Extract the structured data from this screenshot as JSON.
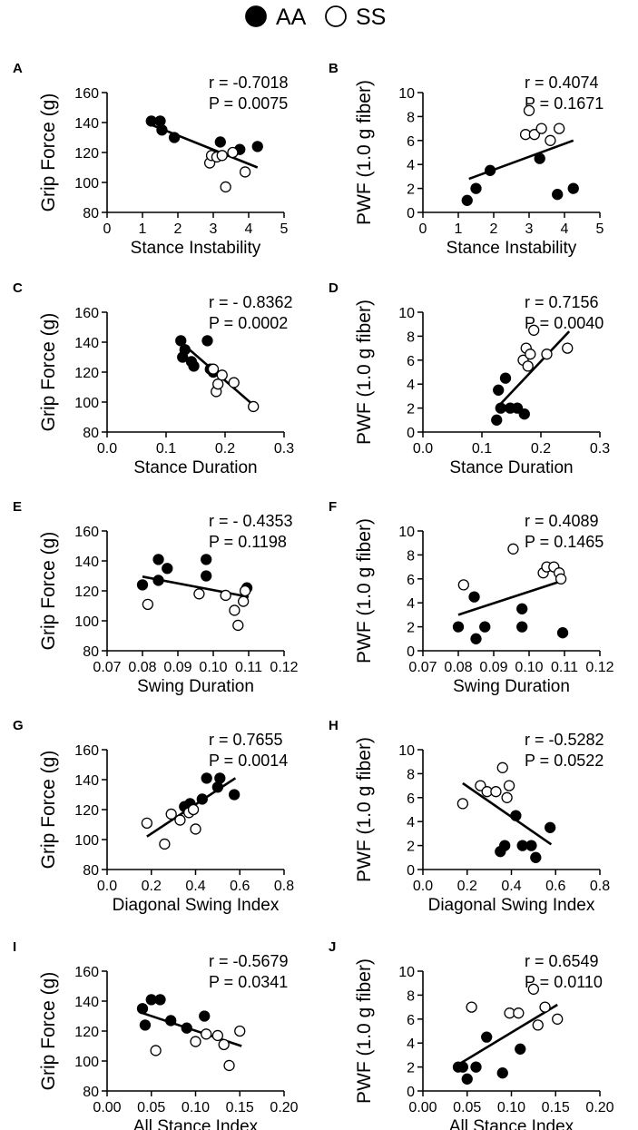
{
  "legend": [
    {
      "label": "AA",
      "fill": "#000000"
    },
    {
      "label": "SS",
      "fill": "#ffffff"
    }
  ],
  "chart_data": [
    {
      "panel": "A",
      "type": "scatter",
      "title": "",
      "xlabel": "Stance Instability",
      "ylabel": "Grip Force (g)",
      "xlim": [
        0,
        5
      ],
      "ylim": [
        80,
        160
      ],
      "xticks": [
        0,
        1,
        2,
        3,
        4,
        5
      ],
      "yticks": [
        80,
        100,
        120,
        140,
        160
      ],
      "xtick_decimals": 0,
      "stat_r": "r =  -0.7018",
      "stat_p": "P =  0.0075",
      "fit": {
        "x": [
          1.3,
          4.25
        ],
        "y": [
          138,
          110
        ]
      },
      "series": [
        {
          "name": "AA",
          "points": [
            [
              1.25,
              141
            ],
            [
              1.5,
              141
            ],
            [
              1.55,
              135
            ],
            [
              1.9,
              130
            ],
            [
              3.2,
              127
            ],
            [
              3.75,
              122
            ],
            [
              4.25,
              124
            ]
          ]
        },
        {
          "name": "SS",
          "points": [
            [
              2.9,
              113
            ],
            [
              2.95,
              118
            ],
            [
              3.1,
              117
            ],
            [
              3.25,
              118
            ],
            [
              3.35,
              97
            ],
            [
              3.55,
              120
            ],
            [
              3.9,
              107
            ]
          ]
        }
      ]
    },
    {
      "panel": "B",
      "type": "scatter",
      "title": "",
      "xlabel": "Stance Instability",
      "ylabel": "PWF (1.0 g fiber)",
      "xlim": [
        0,
        5
      ],
      "ylim": [
        0,
        10
      ],
      "xticks": [
        0,
        1,
        2,
        3,
        4,
        5
      ],
      "yticks": [
        0,
        2,
        4,
        6,
        8,
        10
      ],
      "xtick_decimals": 0,
      "stat_r": "r =  0.4074",
      "stat_p": "P =  0.1671",
      "fit": {
        "x": [
          1.3,
          4.25
        ],
        "y": [
          2.8,
          6.0
        ]
      },
      "series": [
        {
          "name": "AA",
          "points": [
            [
              1.25,
              1.0
            ],
            [
              1.5,
              2.0
            ],
            [
              1.9,
              3.5
            ],
            [
              3.3,
              4.5
            ],
            [
              3.8,
              1.5
            ],
            [
              4.25,
              2.0
            ]
          ]
        },
        {
          "name": "SS",
          "points": [
            [
              2.9,
              6.5
            ],
            [
              3.0,
              8.5
            ],
            [
              3.15,
              6.5
            ],
            [
              3.35,
              7.0
            ],
            [
              3.6,
              6.0
            ],
            [
              3.85,
              7.0
            ]
          ]
        }
      ]
    },
    {
      "panel": "C",
      "type": "scatter",
      "title": "",
      "xlabel": "Stance Duration",
      "ylabel": "Grip Force (g)",
      "xlim": [
        0,
        0.3
      ],
      "ylim": [
        80,
        160
      ],
      "xticks": [
        0,
        0.1,
        0.2,
        0.3
      ],
      "yticks": [
        80,
        100,
        120,
        140,
        160
      ],
      "xtick_decimals": 1,
      "stat_r": "r =  - 0.8362",
      "stat_p": "P =  0.0002",
      "fit": {
        "x": [
          0.125,
          0.248
        ],
        "y": [
          140,
          98
        ]
      },
      "series": [
        {
          "name": "AA",
          "points": [
            [
              0.125,
              141
            ],
            [
              0.128,
              130
            ],
            [
              0.132,
              135
            ],
            [
              0.143,
              127
            ],
            [
              0.147,
              124
            ],
            [
              0.17,
              141
            ],
            [
              0.175,
              122
            ],
            [
              0.18,
              120
            ]
          ]
        },
        {
          "name": "SS",
          "points": [
            [
              0.18,
              122
            ],
            [
              0.185,
              107
            ],
            [
              0.188,
              112
            ],
            [
              0.195,
              118
            ],
            [
              0.215,
              113
            ],
            [
              0.248,
              97
            ]
          ]
        }
      ]
    },
    {
      "panel": "D",
      "type": "scatter",
      "title": "",
      "xlabel": "Stance Duration",
      "ylabel": "PWF (1.0 g fiber)",
      "xlim": [
        0,
        0.3
      ],
      "ylim": [
        0,
        10
      ],
      "xticks": [
        0,
        0.1,
        0.2,
        0.3
      ],
      "yticks": [
        0,
        2,
        4,
        6,
        8,
        10
      ],
      "xtick_decimals": 1,
      "stat_r": "r = 0.7156",
      "stat_p": "P = 0.0040",
      "fit": {
        "x": [
          0.125,
          0.248
        ],
        "y": [
          2.0,
          8.4
        ]
      },
      "series": [
        {
          "name": "AA",
          "points": [
            [
              0.125,
              1.0
            ],
            [
              0.128,
              3.5
            ],
            [
              0.132,
              2.0
            ],
            [
              0.14,
              4.5
            ],
            [
              0.148,
              2.0
            ],
            [
              0.16,
              2.0
            ],
            [
              0.172,
              1.5
            ]
          ]
        },
        {
          "name": "SS",
          "points": [
            [
              0.17,
              6.0
            ],
            [
              0.175,
              7.0
            ],
            [
              0.178,
              5.5
            ],
            [
              0.182,
              6.5
            ],
            [
              0.188,
              8.5
            ],
            [
              0.21,
              6.5
            ],
            [
              0.245,
              7.0
            ]
          ]
        }
      ]
    },
    {
      "panel": "E",
      "type": "scatter",
      "title": "",
      "xlabel": "Swing Duration",
      "ylabel": "Grip Force (g)",
      "xlim": [
        0.07,
        0.12
      ],
      "ylim": [
        80,
        160
      ],
      "xticks": [
        0.07,
        0.08,
        0.09,
        0.1,
        0.11,
        0.12
      ],
      "yticks": [
        80,
        100,
        120,
        140,
        160
      ],
      "xtick_decimals": 2,
      "stat_r": "r = - 0.4353",
      "stat_p": "P =  0.1198",
      "fit": {
        "x": [
          0.08,
          0.11
        ],
        "y": [
          129.5,
          116
        ]
      },
      "series": [
        {
          "name": "AA",
          "points": [
            [
              0.08,
              124
            ],
            [
              0.0845,
              141
            ],
            [
              0.0845,
              127
            ],
            [
              0.087,
              135
            ],
            [
              0.098,
              141
            ],
            [
              0.098,
              130
            ],
            [
              0.1095,
              122
            ]
          ]
        },
        {
          "name": "SS",
          "points": [
            [
              0.0815,
              111
            ],
            [
              0.096,
              118
            ],
            [
              0.1035,
              117
            ],
            [
              0.106,
              107
            ],
            [
              0.107,
              97
            ],
            [
              0.1085,
              113
            ],
            [
              0.109,
              120
            ]
          ]
        }
      ]
    },
    {
      "panel": "F",
      "type": "scatter",
      "title": "",
      "xlabel": "Swing Duration",
      "ylabel": "PWF (1.0 g fiber)",
      "xlim": [
        0.07,
        0.12
      ],
      "ylim": [
        0,
        10
      ],
      "xticks": [
        0.07,
        0.08,
        0.09,
        0.1,
        0.11,
        0.12
      ],
      "yticks": [
        0,
        2,
        4,
        6,
        8,
        10
      ],
      "xtick_decimals": 2,
      "stat_r": "r =  0.4089",
      "stat_p": "P =  0.1465",
      "fit": {
        "x": [
          0.08,
          0.11
        ],
        "y": [
          3.0,
          5.9
        ]
      },
      "series": [
        {
          "name": "AA",
          "points": [
            [
              0.08,
              2.0
            ],
            [
              0.0845,
              4.5
            ],
            [
              0.085,
              1.0
            ],
            [
              0.0875,
              2.0
            ],
            [
              0.098,
              3.5
            ],
            [
              0.098,
              2.0
            ],
            [
              0.1095,
              1.5
            ]
          ]
        },
        {
          "name": "SS",
          "points": [
            [
              0.0815,
              5.5
            ],
            [
              0.0955,
              8.5
            ],
            [
              0.104,
              6.5
            ],
            [
              0.105,
              7.0
            ],
            [
              0.107,
              7.0
            ],
            [
              0.1085,
              6.5
            ],
            [
              0.109,
              6.0
            ]
          ]
        }
      ]
    },
    {
      "panel": "G",
      "type": "scatter",
      "title": "",
      "xlabel": "Diagonal Swing Index",
      "ylabel": "Grip Force (g)",
      "xlim": [
        0,
        0.8
      ],
      "ylim": [
        80,
        160
      ],
      "xticks": [
        0,
        0.2,
        0.4,
        0.6,
        0.8
      ],
      "yticks": [
        80,
        100,
        120,
        140,
        160
      ],
      "xtick_decimals": 1,
      "stat_r": "r = 0.7655",
      "stat_p": "P = 0.0014",
      "fit": {
        "x": [
          0.18,
          0.58
        ],
        "y": [
          102,
          141
        ]
      },
      "series": [
        {
          "name": "AA",
          "points": [
            [
              0.35,
              122
            ],
            [
              0.375,
              124
            ],
            [
              0.43,
              127
            ],
            [
              0.45,
              141
            ],
            [
              0.5,
              135
            ],
            [
              0.51,
              141
            ],
            [
              0.575,
              130
            ]
          ]
        },
        {
          "name": "SS",
          "points": [
            [
              0.18,
              111
            ],
            [
              0.26,
              97
            ],
            [
              0.29,
              117
            ],
            [
              0.33,
              113
            ],
            [
              0.37,
              118
            ],
            [
              0.39,
              120
            ],
            [
              0.4,
              107
            ]
          ]
        }
      ]
    },
    {
      "panel": "H",
      "type": "scatter",
      "title": "",
      "xlabel": "Diagonal Swing Index",
      "ylabel": "PWF (1.0 g fiber)",
      "xlim": [
        0,
        0.8
      ],
      "ylim": [
        0,
        10
      ],
      "xticks": [
        0,
        0.2,
        0.4,
        0.6,
        0.8
      ],
      "yticks": [
        0,
        2,
        4,
        6,
        8,
        10
      ],
      "xtick_decimals": 1,
      "stat_r": "r = -0.5282",
      "stat_p": "P = 0.0522",
      "fit": {
        "x": [
          0.18,
          0.58
        ],
        "y": [
          7.2,
          2.1
        ]
      },
      "series": [
        {
          "name": "AA",
          "points": [
            [
              0.35,
              1.5
            ],
            [
              0.37,
              2.0
            ],
            [
              0.42,
              4.5
            ],
            [
              0.45,
              2.0
            ],
            [
              0.49,
              2.0
            ],
            [
              0.51,
              1.0
            ],
            [
              0.575,
              3.5
            ]
          ]
        },
        {
          "name": "SS",
          "points": [
            [
              0.18,
              5.5
            ],
            [
              0.26,
              7.0
            ],
            [
              0.29,
              6.5
            ],
            [
              0.33,
              6.5
            ],
            [
              0.36,
              8.5
            ],
            [
              0.38,
              6.0
            ],
            [
              0.39,
              7.0
            ]
          ]
        }
      ]
    },
    {
      "panel": "I",
      "type": "scatter",
      "title": "",
      "xlabel": "All Stance Index",
      "ylabel": "Grip Force (g)",
      "xlim": [
        0,
        0.2
      ],
      "ylim": [
        80,
        160
      ],
      "xticks": [
        0,
        0.05,
        0.1,
        0.15,
        0.2
      ],
      "yticks": [
        80,
        100,
        120,
        140,
        160
      ],
      "xtick_decimals": 2,
      "stat_r": "r = -0.5679",
      "stat_p": "P = 0.0341",
      "fit": {
        "x": [
          0.04,
          0.152
        ],
        "y": [
          132,
          110
        ]
      },
      "series": [
        {
          "name": "AA",
          "points": [
            [
              0.04,
              135
            ],
            [
              0.043,
              124
            ],
            [
              0.05,
              141
            ],
            [
              0.06,
              141
            ],
            [
              0.072,
              127
            ],
            [
              0.09,
              122
            ],
            [
              0.11,
              130
            ]
          ]
        },
        {
          "name": "SS",
          "points": [
            [
              0.055,
              107
            ],
            [
              0.1,
              113
            ],
            [
              0.112,
              118
            ],
            [
              0.125,
              117
            ],
            [
              0.132,
              111
            ],
            [
              0.138,
              97
            ],
            [
              0.15,
              120
            ]
          ]
        }
      ]
    },
    {
      "panel": "J",
      "type": "scatter",
      "title": "",
      "xlabel": "All Stance Index",
      "ylabel": "PWF (1.0 g fiber)",
      "xlim": [
        0,
        0.2
      ],
      "ylim": [
        0,
        10
      ],
      "xticks": [
        0,
        0.05,
        0.1,
        0.15,
        0.2
      ],
      "yticks": [
        0,
        2,
        4,
        6,
        8,
        10
      ],
      "xtick_decimals": 2,
      "stat_r": "r = 0.6549",
      "stat_p": "P = 0.0110",
      "fit": {
        "x": [
          0.04,
          0.152
        ],
        "y": [
          2.2,
          7.2
        ]
      },
      "series": [
        {
          "name": "AA",
          "points": [
            [
              0.04,
              2.0
            ],
            [
              0.045,
              2.0
            ],
            [
              0.05,
              1.0
            ],
            [
              0.06,
              2.0
            ],
            [
              0.072,
              4.5
            ],
            [
              0.09,
              1.5
            ],
            [
              0.11,
              3.5
            ]
          ]
        },
        {
          "name": "SS",
          "points": [
            [
              0.055,
              7.0
            ],
            [
              0.098,
              6.5
            ],
            [
              0.108,
              6.5
            ],
            [
              0.125,
              8.5
            ],
            [
              0.13,
              5.5
            ],
            [
              0.138,
              7.0
            ],
            [
              0.152,
              6.0
            ]
          ]
        }
      ]
    }
  ]
}
